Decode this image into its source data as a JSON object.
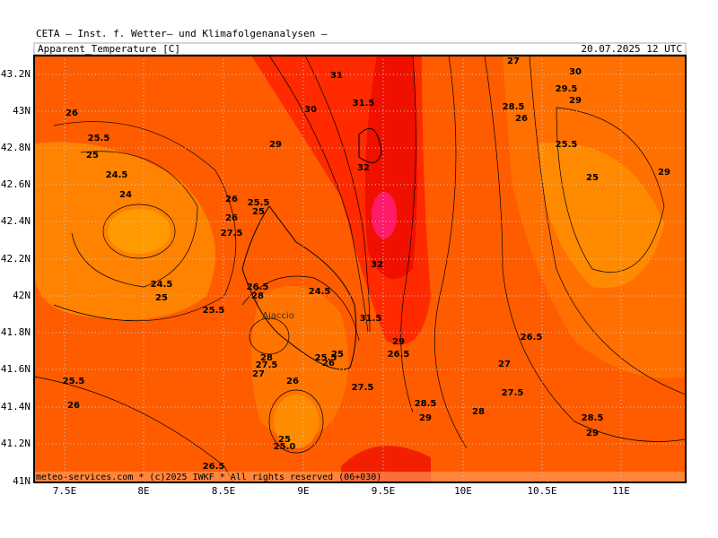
{
  "header": "CETA — Inst. f. Wetter— und Klimafolgenanalysen —",
  "title": "Apparent_Temperature [C]",
  "date": "20.07.2025 12 UTC",
  "footer": "meteo-services.com * (c)2025 IWKF * All rights reserved (06+030)",
  "lat_labels": [
    "43.2N",
    "43N",
    "42.8N",
    "42.6N",
    "42.4N",
    "42.2N",
    "42N",
    "41.8N",
    "41.6N",
    "41.4N",
    "41.2N",
    "41N"
  ],
  "lon_labels": [
    "7.5E",
    "8E",
    "8.5E",
    "9E",
    "9.5E",
    "10E",
    "10.5E",
    "11E"
  ],
  "place": "Ajaccio",
  "contour_labels": [
    "31",
    "31.5",
    "30",
    "29",
    "32",
    "26",
    "25.5",
    "25",
    "24.5",
    "24",
    "26",
    "25.5",
    "25",
    "26",
    "27.5",
    "24.5",
    "25",
    "25.5",
    "26.5",
    "28",
    "24.5",
    "28",
    "27.5",
    "27",
    "25.5",
    "26",
    "25",
    "26",
    "27.5",
    "25.5",
    "26",
    "25",
    "25.0",
    "26.5",
    "26.5",
    "28.5",
    "29",
    "28",
    "27.5",
    "27",
    "26.5",
    "28.5",
    "29",
    "27",
    "30",
    "29.5",
    "29",
    "28.5",
    "26",
    "25.5",
    "25",
    "29",
    "29",
    "32",
    "31.5"
  ]
}
